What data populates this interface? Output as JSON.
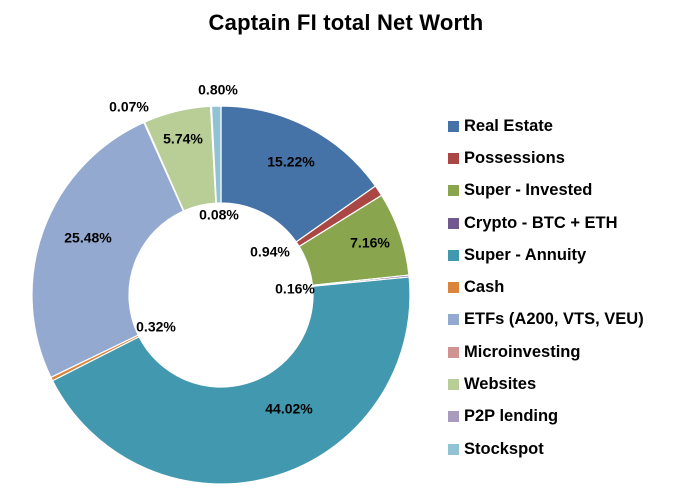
{
  "chart_data": {
    "type": "pie",
    "variant": "donut",
    "title": "Captain FI total Net Worth",
    "legend_position": "right",
    "slices": [
      {
        "name": "Real Estate",
        "value": 15.22,
        "label": "15.22%",
        "color": "#4572A7"
      },
      {
        "name": "Possessions",
        "value": 0.94,
        "label": "0.94%",
        "color": "#AA4643"
      },
      {
        "name": "Super - Invested",
        "value": 7.16,
        "label": "7.16%",
        "color": "#89A54E"
      },
      {
        "name": "Crypto - BTC + ETH",
        "value": 0.16,
        "label": "0.16%",
        "color": "#71588F"
      },
      {
        "name": "Super - Annuity",
        "value": 44.02,
        "label": "44.02%",
        "color": "#4198AF"
      },
      {
        "name": "Cash",
        "value": 0.32,
        "label": "0.32%",
        "color": "#DB843D"
      },
      {
        "name": "ETFs (A200, VTS, VEU)",
        "value": 25.48,
        "label": "25.48%",
        "color": "#93A9CF"
      },
      {
        "name": "Microinvesting",
        "value": 0.07,
        "label": "0.07%",
        "color": "#D19392"
      },
      {
        "name": "Websites",
        "value": 5.74,
        "label": "5.74%",
        "color": "#B9CD96"
      },
      {
        "name": "P2P lending",
        "value": 0.08,
        "label": "0.08%",
        "color": "#A99BBD"
      },
      {
        "name": "Stockspot",
        "value": 0.8,
        "label": "0.80%",
        "color": "#91C3D5"
      }
    ]
  }
}
